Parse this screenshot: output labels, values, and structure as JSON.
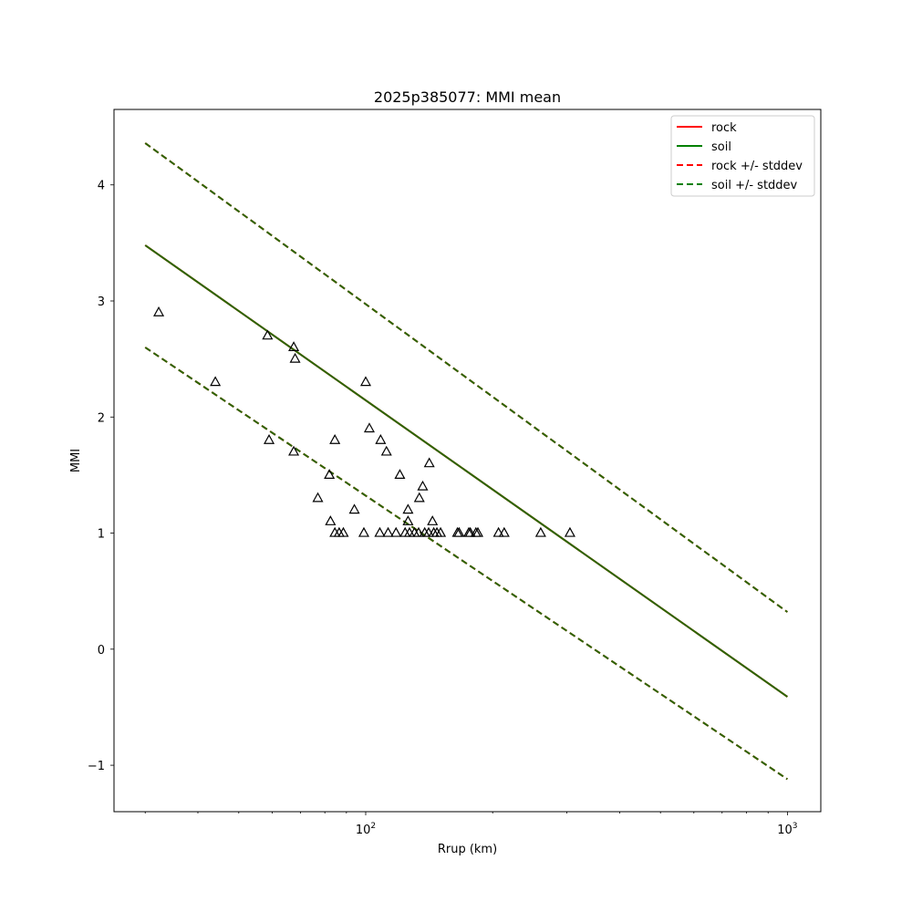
{
  "chart_data": {
    "type": "scatter",
    "title": "2025p385077: MMI mean",
    "xlabel": "Rrup (km)",
    "ylabel": "MMI",
    "xscale": "log",
    "xlim": [
      25.3,
      1200
    ],
    "ylim": [
      -1.4,
      4.65
    ],
    "x_ticks": [
      {
        "value": 100,
        "base": "10",
        "exp": "2"
      },
      {
        "value": 1000,
        "base": "10",
        "exp": "3"
      }
    ],
    "y_ticks": [
      {
        "value": -1,
        "label": "−1"
      },
      {
        "value": 0,
        "label": "0"
      },
      {
        "value": 1,
        "label": "1"
      },
      {
        "value": 2,
        "label": "2"
      },
      {
        "value": 3,
        "label": "3"
      },
      {
        "value": 4,
        "label": "4"
      }
    ],
    "grid": false,
    "legend_position": "top-right",
    "colors": {
      "rock": "#ff0000",
      "soil": "#008000",
      "overlap": "#2a6600",
      "observed": "#000000"
    },
    "series": [
      {
        "name": "rock",
        "style": "solid",
        "color": "#ff0000",
        "x": [
          30,
          1000
        ],
        "y": [
          3.48,
          -0.41
        ]
      },
      {
        "name": "soil",
        "style": "solid",
        "color": "#008000",
        "x": [
          30,
          1000
        ],
        "y": [
          3.48,
          -0.41
        ]
      },
      {
        "name": "rock +/- stddev",
        "style": "dashed",
        "color": "#ff0000",
        "upper": {
          "x": [
            30,
            1000
          ],
          "y": [
            4.36,
            0.32
          ]
        },
        "lower": {
          "x": [
            30,
            1000
          ],
          "y": [
            2.6,
            -1.12
          ]
        }
      },
      {
        "name": "soil +/- stddev",
        "style": "dashed",
        "color": "#008000",
        "upper": {
          "x": [
            30,
            1000
          ],
          "y": [
            4.36,
            0.32
          ]
        },
        "lower": {
          "x": [
            30,
            1000
          ],
          "y": [
            2.6,
            -1.12
          ]
        }
      }
    ],
    "observations": {
      "marker": "triangle",
      "points": [
        [
          32.3,
          2.9
        ],
        [
          44,
          2.3
        ],
        [
          58.5,
          2.7
        ],
        [
          59,
          1.8
        ],
        [
          67.5,
          2.6
        ],
        [
          68,
          2.5
        ],
        [
          67.5,
          1.7
        ],
        [
          77,
          1.3
        ],
        [
          82,
          1.5
        ],
        [
          82.5,
          1.1
        ],
        [
          84.5,
          1.8
        ],
        [
          84.5,
          1.0
        ],
        [
          86.5,
          1.0
        ],
        [
          88.5,
          1.0
        ],
        [
          94,
          1.2
        ],
        [
          99,
          1.0
        ],
        [
          100,
          2.3
        ],
        [
          102,
          1.9
        ],
        [
          108,
          1.0
        ],
        [
          108.5,
          1.8
        ],
        [
          112,
          1.7
        ],
        [
          113,
          1.0
        ],
        [
          118,
          1.0
        ],
        [
          120.5,
          1.5
        ],
        [
          124,
          1.0
        ],
        [
          126,
          1.2
        ],
        [
          126,
          1.1
        ],
        [
          127,
          1.0
        ],
        [
          130.5,
          1.0
        ],
        [
          133.5,
          1.0
        ],
        [
          134,
          1.3
        ],
        [
          136.5,
          1.4
        ],
        [
          138,
          1.0
        ],
        [
          141,
          1.0
        ],
        [
          141.5,
          1.6
        ],
        [
          144,
          1.1
        ],
        [
          145,
          1.0
        ],
        [
          147.5,
          1.0
        ],
        [
          150.5,
          1.0
        ],
        [
          165,
          1.0
        ],
        [
          166.5,
          1.0
        ],
        [
          175.5,
          1.0
        ],
        [
          177,
          1.0
        ],
        [
          182.5,
          1.0
        ],
        [
          184.5,
          1.0
        ],
        [
          206.5,
          1.0
        ],
        [
          213,
          1.0
        ],
        [
          260,
          1.0
        ],
        [
          305,
          1.0
        ]
      ]
    }
  }
}
